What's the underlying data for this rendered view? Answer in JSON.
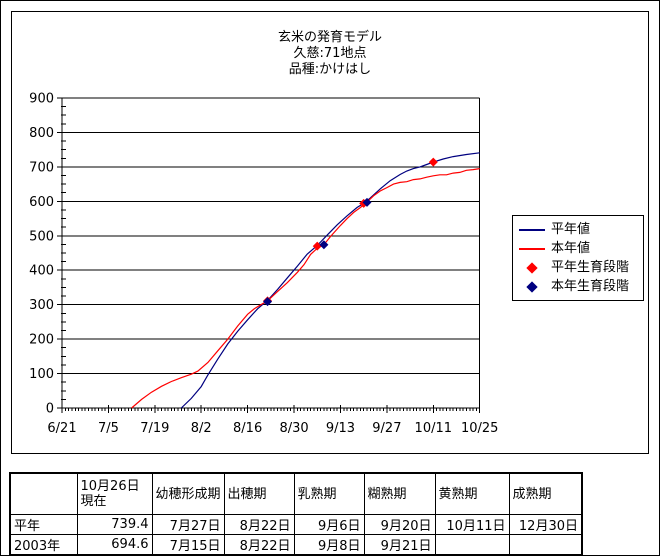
{
  "chart": {
    "title_lines": [
      "玄米の発育モデル",
      "久慈:71地点",
      "品種:かけはし"
    ],
    "legend": {
      "items": [
        {
          "label": "平年値",
          "swatch": "line",
          "color": "#000080"
        },
        {
          "label": "本年値",
          "swatch": "line",
          "color": "#FF0000"
        },
        {
          "label": "平年生育段階",
          "swatch": "diamond",
          "color": "#FF0000"
        },
        {
          "label": "本年生育段階",
          "swatch": "diamond",
          "color": "#000080"
        }
      ]
    }
  },
  "chart_data": {
    "type": "line",
    "title": "玄米の発育モデル 久慈:71地点 品種:かけはし",
    "xlabel": "",
    "ylabel": "",
    "ylim": [
      0,
      900
    ],
    "grid": "horizontal-major",
    "legend_position": "right",
    "x_axis": {
      "tick_labels": [
        "6/21",
        "7/5",
        "7/19",
        "8/2",
        "8/16",
        "8/30",
        "9/13",
        "9/27",
        "10/11",
        "10/25"
      ],
      "tick_days": [
        0,
        14,
        28,
        42,
        56,
        70,
        84,
        98,
        112,
        126
      ],
      "max_day": 126,
      "minor_tick_every_days": 1
    },
    "y_axis": {
      "min": 0,
      "max": 900,
      "major_step": 100,
      "minor_step": 25
    },
    "series": [
      {
        "name": "平年値",
        "color": "#000080",
        "points": [
          [
            36,
            0
          ],
          [
            39,
            28
          ],
          [
            42,
            62
          ],
          [
            44,
            96
          ],
          [
            47,
            142
          ],
          [
            50,
            186
          ],
          [
            53,
            223
          ],
          [
            56,
            256
          ],
          [
            59,
            288
          ],
          [
            62,
            312
          ],
          [
            65,
            344
          ],
          [
            68,
            378
          ],
          [
            71,
            412
          ],
          [
            74,
            447
          ],
          [
            77,
            472
          ],
          [
            80,
            502
          ],
          [
            83,
            532
          ],
          [
            86,
            558
          ],
          [
            89,
            582
          ],
          [
            91,
            594
          ],
          [
            93,
            610
          ],
          [
            96,
            636
          ],
          [
            99,
            660
          ],
          [
            102,
            678
          ],
          [
            104,
            688
          ],
          [
            106,
            695
          ],
          [
            108,
            700
          ],
          [
            110,
            707
          ],
          [
            112,
            714
          ],
          [
            115,
            723
          ],
          [
            118,
            730
          ],
          [
            122,
            736
          ],
          [
            126,
            741
          ]
        ]
      },
      {
        "name": "本年値",
        "color": "#FF0000",
        "points": [
          [
            21,
            0
          ],
          [
            24,
            25
          ],
          [
            27,
            46
          ],
          [
            30,
            63
          ],
          [
            33,
            77
          ],
          [
            36,
            88
          ],
          [
            39,
            98
          ],
          [
            41,
            107
          ],
          [
            44,
            132
          ],
          [
            47,
            166
          ],
          [
            50,
            200
          ],
          [
            53,
            238
          ],
          [
            56,
            272
          ],
          [
            58,
            288
          ],
          [
            60,
            300
          ],
          [
            62,
            311
          ],
          [
            65,
            338
          ],
          [
            68,
            364
          ],
          [
            71,
            394
          ],
          [
            73,
            416
          ],
          [
            75,
            446
          ],
          [
            77,
            464
          ],
          [
            79,
            474
          ],
          [
            81,
            498
          ],
          [
            84,
            530
          ],
          [
            86,
            550
          ],
          [
            88,
            568
          ],
          [
            90,
            582
          ],
          [
            91,
            590
          ],
          [
            92,
            598
          ],
          [
            94,
            616
          ],
          [
            96,
            630
          ],
          [
            98,
            640
          ],
          [
            100,
            650
          ],
          [
            102,
            655
          ],
          [
            104,
            657
          ],
          [
            106,
            663
          ],
          [
            108,
            665
          ],
          [
            110,
            670
          ],
          [
            112,
            674
          ],
          [
            114,
            677
          ],
          [
            116,
            677
          ],
          [
            118,
            682
          ],
          [
            120,
            684
          ],
          [
            122,
            690
          ],
          [
            124,
            692
          ],
          [
            126,
            695
          ]
        ]
      }
    ],
    "marker_series": [
      {
        "name": "平年生育段階",
        "color": "#FF0000",
        "marker": "diamond",
        "points": [
          [
            62,
            311
          ],
          [
            77,
            470
          ],
          [
            91,
            594
          ],
          [
            112,
            714
          ]
        ]
      },
      {
        "name": "本年生育段階",
        "color": "#000080",
        "marker": "diamond",
        "points": [
          [
            62,
            309
          ],
          [
            79,
            474
          ],
          [
            92,
            597
          ]
        ]
      }
    ]
  },
  "table": {
    "headers": [
      "",
      "10月26日現在",
      "幼穂形成期",
      "出穂期",
      "乳熟期",
      "糊熟期",
      "黄熟期",
      "成熟期"
    ],
    "rows": [
      {
        "label": "平年",
        "cells": [
          "739.4",
          "7月27日",
          "8月22日",
          "9月6日",
          "9月20日",
          "10月11日",
          "12月30日"
        ]
      },
      {
        "label": "2003年",
        "cells": [
          "694.6",
          "7月15日",
          "8月22日",
          "9月8日",
          "9月21日",
          "",
          ""
        ]
      }
    ]
  }
}
